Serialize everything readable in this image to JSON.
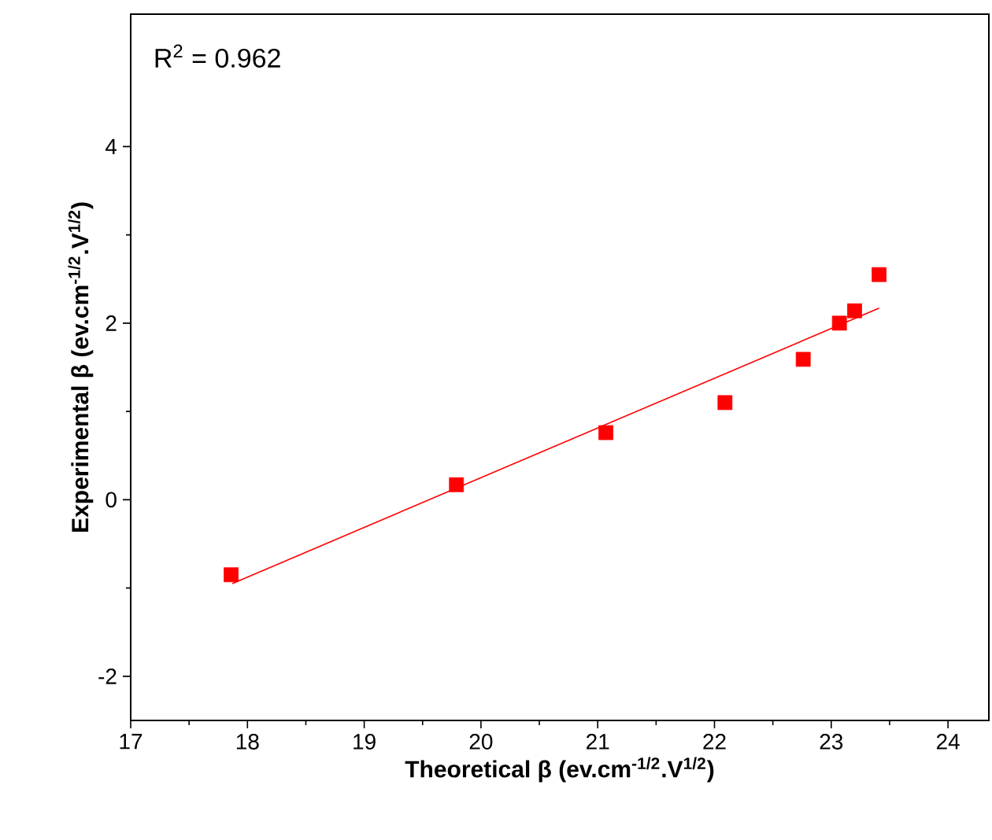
{
  "chart_data": {
    "type": "scatter",
    "xlabel": "Theoretical β (ev.cm$^{-1/2}$.V$^{1/2}$)",
    "ylabel": "Experimental β (ev.cm$^{-1/2}$.V$^{1/2}$)",
    "annotations": [
      "R$^{2}$ = 0.962"
    ],
    "xlim": [
      17,
      24.35
    ],
    "ylim": [
      -2.5,
      5.5
    ],
    "xticks": [
      17,
      18,
      19,
      20,
      21,
      22,
      23,
      24
    ],
    "yticks": [
      -2,
      0,
      2,
      4
    ],
    "marker": "square",
    "series": [
      {
        "color": "#ff0000",
        "x": [
          17.86,
          19.79,
          21.07,
          22.09,
          22.76,
          23.07,
          23.2,
          23.41
        ],
        "values": [
          -0.85,
          0.17,
          0.76,
          1.1,
          1.59,
          2.0,
          2.14,
          2.55
        ]
      },
      {
        "type": "line",
        "color": "#ff0000",
        "marker": "none",
        "x": [
          17.87,
          23.41
        ],
        "values": [
          -0.95,
          2.17
        ]
      }
    ]
  }
}
